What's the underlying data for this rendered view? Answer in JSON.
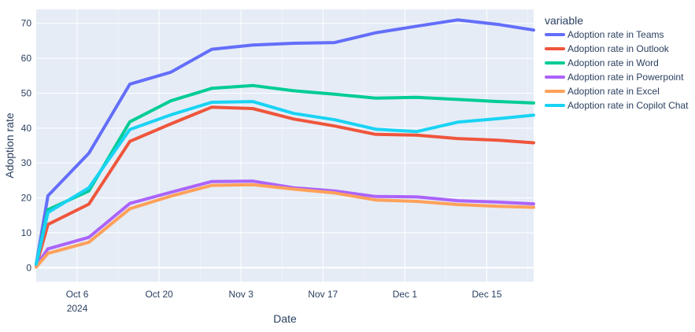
{
  "chart_data": {
    "type": "line",
    "x": [
      "2024-09-29",
      "2024-10-01",
      "2024-10-08",
      "2024-10-15",
      "2024-10-22",
      "2024-10-29",
      "2024-11-05",
      "2024-11-12",
      "2024-11-19",
      "2024-11-26",
      "2024-12-03",
      "2024-12-10",
      "2024-12-17",
      "2024-12-23"
    ],
    "series": [
      {
        "name": "Adoption rate in Teams",
        "color": "#636efa",
        "values": [
          1.0,
          20.6,
          32.8,
          52.6,
          56.0,
          62.6,
          63.8,
          64.3,
          64.5,
          67.3,
          69.2,
          71.0,
          69.7,
          68.1
        ]
      },
      {
        "name": "Adoption rate in Outlook",
        "color": "#ef553b",
        "values": [
          0.5,
          12.4,
          18.2,
          36.2,
          41.2,
          46.0,
          45.6,
          42.6,
          40.6,
          38.2,
          38.0,
          37.0,
          36.5,
          35.8
        ]
      },
      {
        "name": "Adoption rate in Word",
        "color": "#00cc96",
        "values": [
          1.0,
          16.6,
          22.0,
          41.8,
          47.8,
          51.4,
          52.2,
          50.7,
          49.7,
          48.6,
          48.8,
          48.2,
          47.6,
          47.2
        ]
      },
      {
        "name": "Adoption rate in Powerpoint",
        "color": "#ab63fa",
        "values": [
          0.5,
          5.4,
          8.7,
          18.4,
          21.6,
          24.7,
          24.8,
          22.9,
          22.0,
          20.4,
          20.3,
          19.2,
          18.8,
          18.3
        ]
      },
      {
        "name": "Adoption rate in Excel",
        "color": "#ffa15a",
        "values": [
          0.2,
          4.1,
          7.3,
          16.9,
          20.5,
          23.6,
          23.8,
          22.5,
          21.4,
          19.4,
          19.0,
          18.1,
          17.6,
          17.3
        ]
      },
      {
        "name": "Adoption rate in Copilot Chat",
        "color": "#19d3f3",
        "values": [
          1.0,
          15.8,
          22.9,
          39.6,
          43.8,
          47.4,
          47.6,
          44.2,
          42.4,
          39.7,
          39.0,
          41.7,
          42.7,
          43.7
        ]
      }
    ],
    "xlabel": "Date",
    "ylabel": "Adoption rate",
    "xlim": [
      "2024-09-29",
      "2024-12-23"
    ],
    "ylim": [
      -4,
      74
    ],
    "x_ticks": [
      {
        "date": "2024-10-06",
        "label": "Oct 6",
        "sublabel": "2024"
      },
      {
        "date": "2024-10-20",
        "label": "Oct 20",
        "sublabel": ""
      },
      {
        "date": "2024-11-03",
        "label": "Nov 3",
        "sublabel": ""
      },
      {
        "date": "2024-11-17",
        "label": "Nov 17",
        "sublabel": ""
      },
      {
        "date": "2024-12-01",
        "label": "Dec 1",
        "sublabel": ""
      },
      {
        "date": "2024-12-15",
        "label": "Dec 15",
        "sublabel": ""
      }
    ],
    "y_ticks": [
      0,
      10,
      20,
      30,
      40,
      50,
      60,
      70
    ],
    "legend_title": "variable",
    "legend_position": "right",
    "grid": true,
    "plot_background": "#e5ecf6"
  }
}
